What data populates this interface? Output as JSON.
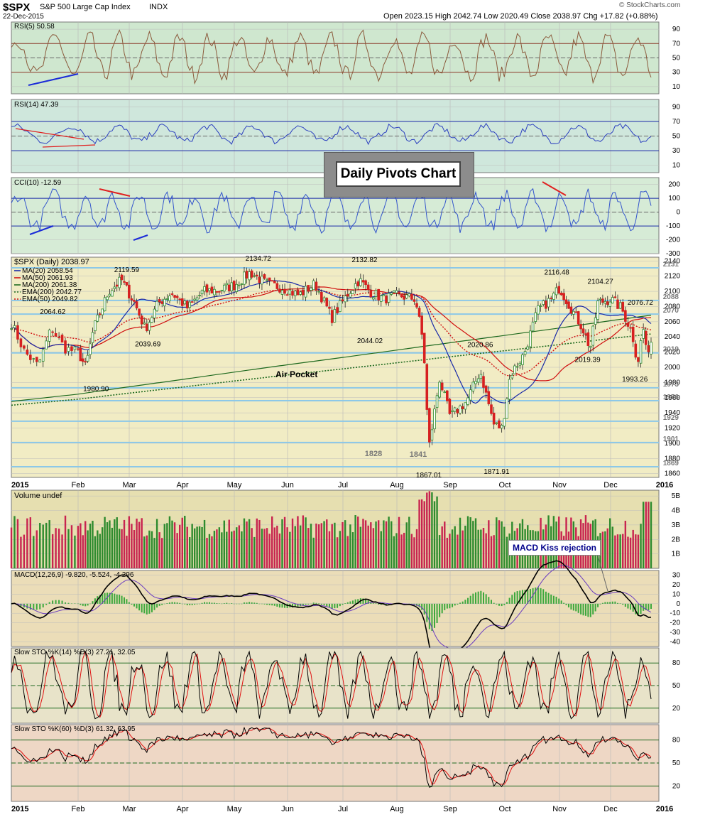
{
  "header": {
    "symbol": "$SPX",
    "name": "S&P 500 Large Cap Index",
    "exchange": "INDX",
    "date": "22-Dec-2015",
    "ohlc_text": "Open 2023.15  High 2042.74  Low 2020.49  Close 2038.97  Chg +17.82 (+0.88%)",
    "watermark": "© StockCharts.com"
  },
  "callout": {
    "text": "Daily Pivots Chart"
  },
  "annotations": {
    "macd_kiss": "MACD Kiss rejection",
    "air_pocket": "Air Pocket"
  },
  "colors": {
    "price_up": "#2e8b2e",
    "price_down": "#d62020",
    "rsi5": "#8b5a3c",
    "rsi14": "#2b3fbf",
    "cci": "#3355cc",
    "ma20": "#1a2aa8",
    "ma50": "#d01010",
    "ma200": "#1f6a1f",
    "ema200": "#1f6a1f",
    "ema50": "#d01010",
    "vol_up": "#2e8b2e",
    "vol_down": "#c8244f",
    "macd": "#000000",
    "signal": "#6a3cc0",
    "hist": "#3ca83c",
    "sto_k": "#000000",
    "sto_d": "#e01010",
    "pivot": "#8cc8e8",
    "trendline_blue": "#1a2ad8",
    "trendline_red": "#e02020"
  },
  "chart_data": [
    {
      "type": "line",
      "panel": "RSI(5)",
      "legend": "RSI(5) 50.58",
      "levels": [
        70,
        50,
        30
      ],
      "yticks": [
        10,
        30,
        50,
        70,
        90
      ],
      "ylim": [
        0,
        100
      ],
      "last": 50.58
    },
    {
      "type": "line",
      "panel": "RSI(14)",
      "legend": "RSI(14) 47.39",
      "levels": [
        70,
        50,
        30
      ],
      "yticks": [
        10,
        30,
        50,
        70,
        90
      ],
      "ylim": [
        0,
        100
      ],
      "last": 47.39
    },
    {
      "type": "line",
      "panel": "CCI(10)",
      "legend": "CCI(10) -12.59",
      "levels": [
        100,
        0,
        -100
      ],
      "yticks": [
        -300,
        -200,
        -100,
        0,
        100,
        200
      ],
      "ylim": [
        -300,
        250
      ],
      "last": -12.59
    },
    {
      "type": "candlestick",
      "panel": "$SPX (Daily)",
      "legend_title": "$SPX (Daily) 2038.97",
      "legend": [
        "MA(20) 2058.54",
        "MA(50) 2061.93",
        "MA(200) 2061.38",
        "EMA(200) 2042.77",
        "EMA(50) 2049.82"
      ],
      "yticks": [
        1860,
        1880,
        1900,
        1920,
        1940,
        1960,
        1980,
        2000,
        2020,
        2040,
        2060,
        2080,
        2100,
        2120,
        2140
      ],
      "ylim": [
        1855,
        2145
      ],
      "pivots": [
        2131,
        2088,
        2070,
        2019,
        1973,
        1956,
        1929,
        1901,
        1869
      ],
      "pivot_labels": [
        "2131",
        "2088",
        "2070",
        "2019",
        "1973",
        "1956",
        "1929",
        "1901",
        "1869"
      ],
      "extra_labels": [
        "1828",
        "1841"
      ],
      "price_labels": [
        "2064.62",
        "1980.90",
        "2119.59",
        "2039.69",
        "2134.72",
        "2132.82",
        "2044.02",
        "1867.01",
        "2020.86",
        "1871.91",
        "2116.48",
        "2104.27",
        "2019.39",
        "2076.72",
        "1993.26"
      ],
      "price_label_values": [
        2064.62,
        1980.9,
        2119.59,
        2039.69,
        2134.72,
        2132.82,
        2044.02,
        1867.01,
        2020.86,
        1871.91,
        2116.48,
        2104.27,
        2019.39,
        2076.72,
        1993.26
      ],
      "price_label_months": [
        0.62,
        1.35,
        1.95,
        2.35,
        4.45,
        6.4,
        6.5,
        7.6,
        8.55,
        8.85,
        9.95,
        10.8,
        10.55,
        11.55,
        11.45
      ],
      "close_series": [
        {
          "m": 0.0,
          "v": 2058
        },
        {
          "m": 0.2,
          "v": 2020
        },
        {
          "m": 0.4,
          "v": 2002
        },
        {
          "m": 0.6,
          "v": 2052
        },
        {
          "m": 0.8,
          "v": 2025
        },
        {
          "m": 1.0,
          "v": 2020
        },
        {
          "m": 1.15,
          "v": 2000
        },
        {
          "m": 1.3,
          "v": 2050
        },
        {
          "m": 1.6,
          "v": 2100
        },
        {
          "m": 1.85,
          "v": 2115
        },
        {
          "m": 2.1,
          "v": 2085
        },
        {
          "m": 2.3,
          "v": 2050
        },
        {
          "m": 2.55,
          "v": 2085
        },
        {
          "m": 2.8,
          "v": 2098
        },
        {
          "m": 3.1,
          "v": 2078
        },
        {
          "m": 3.4,
          "v": 2100
        },
        {
          "m": 3.7,
          "v": 2102
        },
        {
          "m": 4.0,
          "v": 2108
        },
        {
          "m": 4.3,
          "v": 2125
        },
        {
          "m": 4.6,
          "v": 2110
        },
        {
          "m": 4.9,
          "v": 2105
        },
        {
          "m": 5.2,
          "v": 2095
        },
        {
          "m": 5.5,
          "v": 2110
        },
        {
          "m": 5.8,
          "v": 2065
        },
        {
          "m": 6.1,
          "v": 2098
        },
        {
          "m": 6.3,
          "v": 2115
        },
        {
          "m": 6.5,
          "v": 2100
        },
        {
          "m": 6.75,
          "v": 2090
        },
        {
          "m": 7.0,
          "v": 2095
        },
        {
          "m": 7.35,
          "v": 2090
        },
        {
          "m": 7.5,
          "v": 2030
        },
        {
          "m": 7.6,
          "v": 1893
        },
        {
          "m": 7.8,
          "v": 1985
        },
        {
          "m": 8.0,
          "v": 1935
        },
        {
          "m": 8.3,
          "v": 1955
        },
        {
          "m": 8.55,
          "v": 1995
        },
        {
          "m": 8.8,
          "v": 1925
        },
        {
          "m": 8.95,
          "v": 1920
        },
        {
          "m": 9.1,
          "v": 1990
        },
        {
          "m": 9.35,
          "v": 2017
        },
        {
          "m": 9.6,
          "v": 2075
        },
        {
          "m": 9.85,
          "v": 2090
        },
        {
          "m": 10.0,
          "v": 2105
        },
        {
          "m": 10.2,
          "v": 2081
        },
        {
          "m": 10.45,
          "v": 2052
        },
        {
          "m": 10.6,
          "v": 2025
        },
        {
          "m": 10.75,
          "v": 2085
        },
        {
          "m": 11.0,
          "v": 2090
        },
        {
          "m": 11.2,
          "v": 2078
        },
        {
          "m": 11.4,
          "v": 2045
        },
        {
          "m": 11.5,
          "v": 2005
        },
        {
          "m": 11.6,
          "v": 2052
        },
        {
          "m": 11.7,
          "v": 2012
        },
        {
          "m": 11.75,
          "v": 2039
        }
      ]
    },
    {
      "type": "bar",
      "panel": "Volume",
      "legend": "Volume undef",
      "yticks_labels": [
        "1B",
        "2B",
        "3B",
        "4B",
        "5B"
      ],
      "yticks": [
        1,
        2,
        3,
        4,
        5
      ],
      "ylim": [
        0,
        5.4
      ]
    },
    {
      "type": "line",
      "panel": "MACD",
      "legend": "MACD(12,26,9) -9.820, -5.524, -4.296",
      "yticks": [
        -40,
        -30,
        -20,
        -10,
        0,
        10,
        20,
        30
      ],
      "ylim": [
        -45,
        35
      ]
    },
    {
      "type": "line",
      "panel": "Slow STO 14",
      "legend": "Slow STO %K(14) %D(3) 27.21, 32.05",
      "levels": [
        80,
        50,
        20
      ],
      "yticks": [
        20,
        50,
        80
      ],
      "ylim": [
        0,
        100
      ]
    },
    {
      "type": "line",
      "panel": "Slow STO 60",
      "legend": "Slow STO %K(60) %D(3) 61.32, 63.95",
      "levels": [
        80,
        50,
        20
      ],
      "yticks": [
        20,
        50,
        80
      ],
      "ylim": [
        0,
        100
      ]
    }
  ],
  "xaxis": {
    "months": [
      "2015",
      "Feb",
      "Mar",
      "Apr",
      "May",
      "Jun",
      "Jul",
      "Aug",
      "Sep",
      "Oct",
      "Nov",
      "Dec",
      "2016"
    ]
  }
}
